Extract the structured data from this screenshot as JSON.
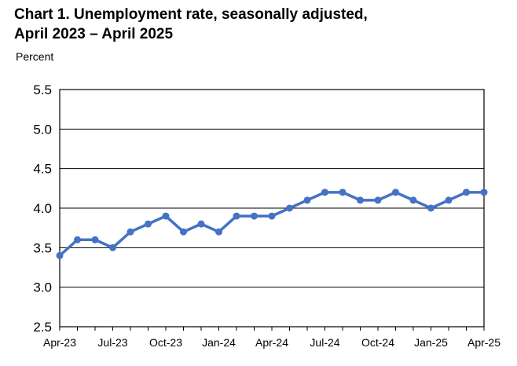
{
  "chart_data": {
    "type": "line",
    "title": "Chart 1. Unemployment rate, seasonally adjusted,",
    "subtitle": "April 2023 – April 2025",
    "ylabel": "Percent",
    "xlabel": "",
    "ylim": [
      2.5,
      5.5
    ],
    "yticks": [
      "5.5",
      "5.0",
      "4.5",
      "4.0",
      "3.5",
      "3.0",
      "2.5"
    ],
    "x_tick_labels": [
      "Apr-23",
      "Jul-23",
      "Oct-23",
      "Jan-24",
      "Apr-24",
      "Jul-24",
      "Oct-24",
      "Jan-25",
      "Apr-25"
    ],
    "x": [
      "2023-04",
      "2023-05",
      "2023-06",
      "2023-07",
      "2023-08",
      "2023-09",
      "2023-10",
      "2023-11",
      "2023-12",
      "2024-01",
      "2024-02",
      "2024-03",
      "2024-04",
      "2024-05",
      "2024-06",
      "2024-07",
      "2024-08",
      "2024-09",
      "2024-10",
      "2024-11",
      "2024-12",
      "2025-01",
      "2025-02",
      "2025-03",
      "2025-04"
    ],
    "series": [
      {
        "values": [
          3.4,
          3.6,
          3.6,
          3.5,
          3.7,
          3.8,
          3.9,
          3.7,
          3.8,
          3.7,
          3.9,
          3.9,
          3.9,
          4.0,
          4.1,
          4.2,
          4.2,
          4.1,
          4.1,
          4.2,
          4.1,
          4.0,
          4.1,
          4.2,
          4.2
        ],
        "color": "#4472C4"
      }
    ],
    "grid": true,
    "legend": "none"
  }
}
